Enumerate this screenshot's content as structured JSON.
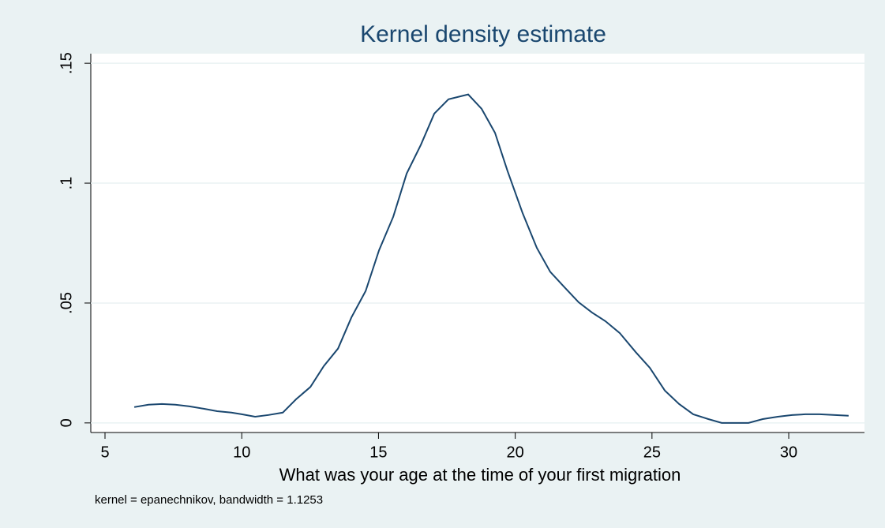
{
  "chart_data": {
    "type": "line",
    "title": "Kernel density estimate",
    "x_label": "What was your age at the time of your first migration",
    "note": "kernel = epanechnikov, bandwidth = 1.1253",
    "series": [
      {
        "color": "#1a476f",
        "x": [
          6.07,
          6.59,
          7.08,
          7.57,
          8.09,
          8.61,
          9.1,
          9.62,
          10.0,
          10.49,
          10.98,
          11.5,
          11.99,
          12.51,
          13.0,
          13.52,
          14.01,
          14.53,
          15.02,
          15.54,
          16.03,
          16.55,
          17.04,
          17.56,
          18.28,
          18.77,
          19.26,
          19.72,
          20.27,
          20.79,
          21.28,
          21.8,
          22.32,
          22.81,
          23.3,
          23.82,
          24.4,
          24.92,
          25.47,
          25.99,
          26.51,
          27.06,
          27.55,
          28.53,
          29.05,
          29.6,
          30.12,
          30.61,
          31.13,
          31.7,
          32.19
        ],
        "values": [
          0.0066,
          0.0076,
          0.0079,
          0.0076,
          0.0069,
          0.0059,
          0.0049,
          0.0043,
          0.0036,
          0.0026,
          0.0033,
          0.0043,
          0.0099,
          0.015,
          0.0237,
          0.031,
          0.044,
          0.055,
          0.072,
          0.086,
          0.104,
          0.116,
          0.129,
          0.135,
          0.137,
          0.131,
          0.121,
          0.105,
          0.0875,
          0.073,
          0.063,
          0.0566,
          0.0503,
          0.046,
          0.0424,
          0.0375,
          0.0296,
          0.023,
          0.0135,
          0.0079,
          0.0036,
          0.0016,
          0,
          0,
          0.0016,
          0.0026,
          0.0033,
          0.0036,
          0.0036,
          0.0033,
          0.003
        ]
      }
    ],
    "xlim": [
      4.48,
      32.77
    ],
    "xticks": [
      5,
      10,
      15,
      20,
      25,
      30
    ],
    "ylim": [
      -0.004,
      0.154
    ],
    "yticks": [
      0,
      {
        "value": 0.05,
        "label": ".05"
      },
      {
        "value": 0.1,
        "label": ".1"
      },
      {
        "value": 0.15,
        "label": ".15"
      }
    ],
    "grid": true
  }
}
